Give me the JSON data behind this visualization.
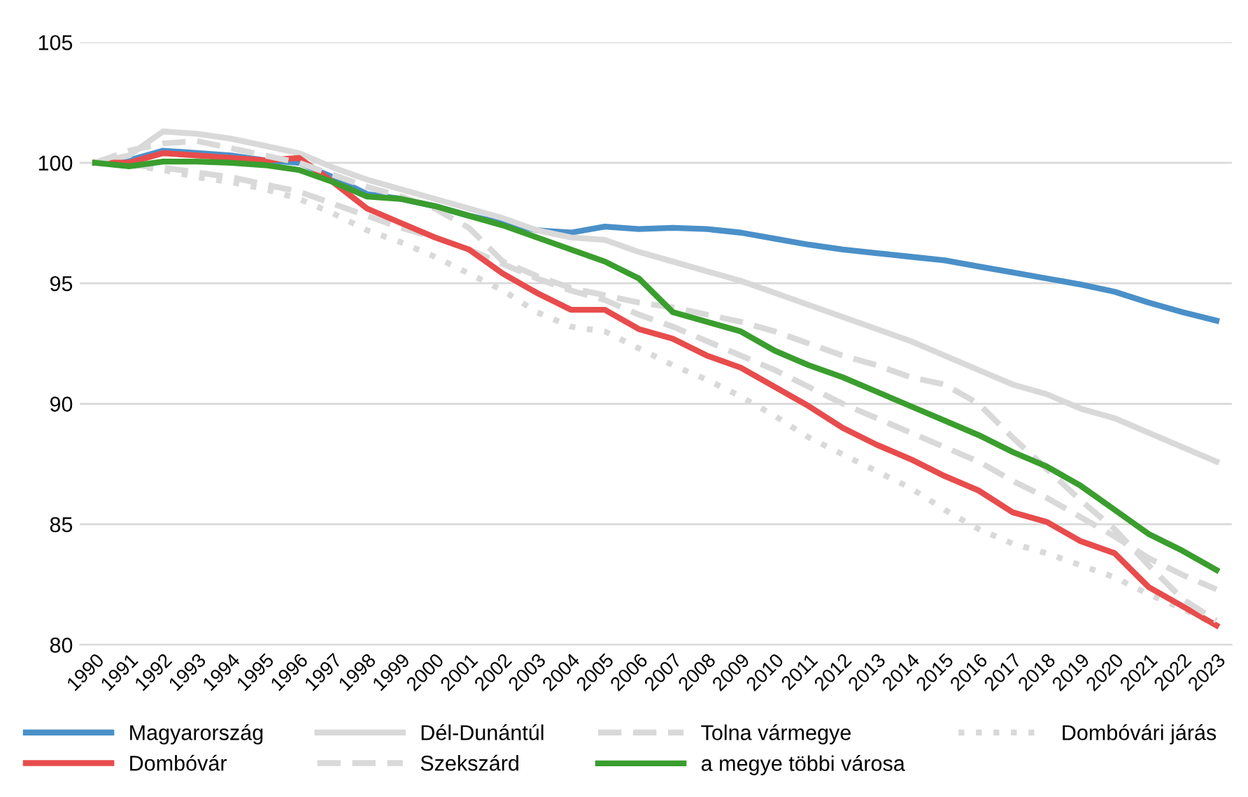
{
  "chart_data": {
    "type": "line",
    "categories": [
      "1990",
      "1991",
      "1992",
      "1993",
      "1994",
      "1995",
      "1996",
      "1997",
      "1998",
      "1999",
      "2000",
      "2001",
      "2002",
      "2003",
      "2004",
      "2005",
      "2006",
      "2007",
      "2008",
      "2009",
      "2010",
      "2011",
      "2012",
      "2013",
      "2014",
      "2015",
      "2016",
      "2017",
      "2018",
      "2019",
      "2020",
      "2021",
      "2022",
      "2023"
    ],
    "ylim": [
      80,
      105
    ],
    "yticks": [
      80,
      85,
      90,
      95,
      100,
      105
    ],
    "grid": "y",
    "legend": "bottom",
    "marker": "none",
    "series": [
      {
        "name": "Magyarország",
        "color": "#4a90c8",
        "line_style": "solid",
        "values": [
          100,
          100.1,
          100.5,
          100.4,
          100.3,
          100.1,
          100.0,
          99.4,
          98.7,
          98.5,
          98.2,
          97.8,
          97.5,
          97.2,
          97.1,
          97.35,
          97.25,
          97.3,
          97.25,
          97.1,
          96.85,
          96.6,
          96.4,
          96.25,
          96.1,
          95.95,
          95.7,
          95.45,
          95.2,
          94.95,
          94.65,
          94.2,
          93.8,
          93.45
        ]
      },
      {
        "name": "Dél-Dunántúl",
        "color": "#d9d9d9",
        "line_style": "solid",
        "values": [
          100,
          100.3,
          101.3,
          101.2,
          101.0,
          100.7,
          100.4,
          99.8,
          99.3,
          98.9,
          98.5,
          98.1,
          97.7,
          97.2,
          96.9,
          96.8,
          96.3,
          95.9,
          95.5,
          95.1,
          94.6,
          94.1,
          93.6,
          93.1,
          92.6,
          92.0,
          91.4,
          90.8,
          90.4,
          89.8,
          89.4,
          88.8,
          88.2,
          87.6
        ]
      },
      {
        "name": "Tolna vármegye",
        "color": "#d9d9d9",
        "line_style": "dashed",
        "values": [
          100,
          99.9,
          99.8,
          99.6,
          99.4,
          99.1,
          98.8,
          98.3,
          97.8,
          97.3,
          96.9,
          96.4,
          95.8,
          95.2,
          94.7,
          94.3,
          93.7,
          93.2,
          92.6,
          92.0,
          91.4,
          90.7,
          90.0,
          89.4,
          88.8,
          88.2,
          87.6,
          86.8,
          86.1,
          85.3,
          84.5,
          83.6,
          82.9,
          82.3
        ]
      },
      {
        "name": "Dombóvári járás",
        "color": "#d9d9d9",
        "line_style": "dotted",
        "values": [
          100,
          99.9,
          99.7,
          99.4,
          99.2,
          98.9,
          98.5,
          97.9,
          97.2,
          96.7,
          96.1,
          95.4,
          94.7,
          93.8,
          93.2,
          93.0,
          92.3,
          91.6,
          91.0,
          90.3,
          89.5,
          88.6,
          87.9,
          87.2,
          86.5,
          85.6,
          84.8,
          84.2,
          83.8,
          83.3,
          82.8,
          82.1,
          81.5,
          80.8
        ]
      },
      {
        "name": "Dombóvár",
        "color": "#e84c4c",
        "line_style": "solid",
        "values": [
          100,
          100.0,
          100.4,
          100.3,
          100.2,
          100.1,
          100.2,
          99.2,
          98.1,
          97.5,
          96.9,
          96.4,
          95.4,
          94.6,
          93.9,
          93.9,
          93.1,
          92.7,
          92.0,
          91.5,
          90.7,
          89.9,
          89.0,
          88.3,
          87.7,
          87.0,
          86.4,
          85.5,
          85.1,
          84.3,
          83.8,
          82.4,
          81.6,
          80.8
        ]
      },
      {
        "name": "Szekszárd",
        "color": "#d9d9d9",
        "line_style": "dashed",
        "values": [
          100,
          100.5,
          100.8,
          100.9,
          100.6,
          100.3,
          100.0,
          99.5,
          99.0,
          98.6,
          98.1,
          97.3,
          95.9,
          95.3,
          94.8,
          94.5,
          94.2,
          94.0,
          93.7,
          93.4,
          93.0,
          92.5,
          92.0,
          91.6,
          91.1,
          90.8,
          90.0,
          88.6,
          87.3,
          86.0,
          84.8,
          83.3,
          81.9,
          81.0
        ]
      },
      {
        "name": "a megye többi városa",
        "color": "#3a9e2e",
        "line_style": "solid",
        "values": [
          100,
          99.85,
          100.05,
          100.05,
          100.0,
          99.9,
          99.7,
          99.2,
          98.6,
          98.5,
          98.2,
          97.8,
          97.4,
          96.9,
          96.4,
          95.9,
          95.2,
          93.8,
          93.4,
          93.0,
          92.2,
          91.6,
          91.1,
          90.5,
          89.9,
          89.3,
          88.7,
          88.0,
          87.4,
          86.6,
          85.6,
          84.6,
          83.9,
          83.1
        ]
      }
    ]
  }
}
